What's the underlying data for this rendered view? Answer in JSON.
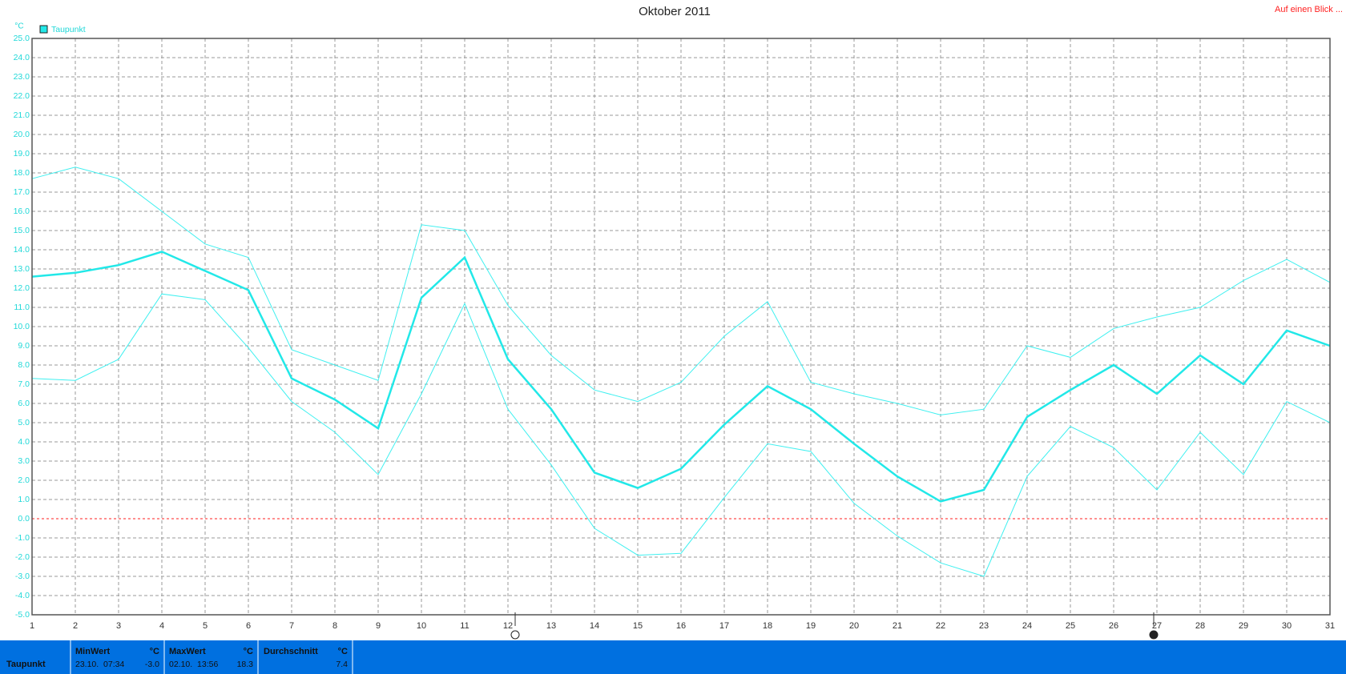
{
  "chart_data": {
    "type": "line",
    "title": "Oktober 2011",
    "corner_link": "Auf einen Blick ...",
    "y_unit": "°C",
    "x": [
      1,
      2,
      3,
      4,
      5,
      6,
      7,
      8,
      9,
      10,
      11,
      12,
      13,
      14,
      15,
      16,
      17,
      18,
      19,
      20,
      21,
      22,
      23,
      24,
      25,
      26,
      27,
      28,
      29,
      30,
      31
    ],
    "series": [
      {
        "color": "#3ff0f0",
        "line_width": 1,
        "values": [
          17.7,
          18.3,
          17.7,
          16.0,
          14.3,
          13.6,
          8.8,
          8.0,
          7.2,
          15.3,
          15.0,
          11.1,
          8.5,
          6.7,
          6.1,
          7.1,
          9.5,
          11.3,
          7.1,
          6.5,
          6.0,
          5.4,
          5.7,
          9.0,
          8.4,
          9.9,
          10.5,
          11.0,
          12.4,
          13.5,
          12.3
        ]
      },
      {
        "name": "Taupunkt",
        "color": "#22e8e8",
        "line_width": 2.5,
        "values": [
          12.6,
          12.8,
          13.2,
          13.9,
          12.9,
          11.9,
          7.3,
          6.2,
          4.7,
          11.5,
          13.6,
          8.3,
          5.7,
          2.4,
          1.6,
          2.6,
          4.9,
          6.9,
          5.7,
          3.9,
          2.2,
          0.9,
          1.5,
          5.3,
          6.7,
          8.0,
          6.5,
          8.5,
          7.0,
          9.8,
          9.0
        ]
      },
      {
        "color": "#3ff0f0",
        "line_width": 1,
        "values": [
          7.3,
          7.2,
          8.3,
          11.7,
          11.4,
          8.9,
          6.1,
          4.5,
          2.3,
          6.5,
          11.2,
          5.7,
          2.8,
          -0.5,
          -1.9,
          -1.8,
          1.1,
          3.9,
          3.5,
          0.8,
          -0.9,
          -2.3,
          -3.0,
          2.2,
          4.8,
          3.7,
          1.5,
          4.5,
          2.3,
          6.1,
          5.0
        ]
      }
    ],
    "xlim": [
      1,
      31
    ],
    "xticks": [
      1,
      2,
      3,
      4,
      5,
      6,
      7,
      8,
      9,
      10,
      11,
      12,
      13,
      14,
      15,
      16,
      17,
      18,
      19,
      20,
      21,
      22,
      23,
      24,
      25,
      26,
      27,
      28,
      29,
      30,
      31
    ],
    "ylim": [
      -5,
      25
    ],
    "yticks": [
      {
        "value": -5,
        "label": "-5.0"
      },
      {
        "value": -4,
        "label": "-4.0"
      },
      {
        "value": -3,
        "label": "-3.0"
      },
      {
        "value": -2,
        "label": "-2.0"
      },
      {
        "value": -1,
        "label": "-1.0"
      },
      {
        "value": 0,
        "label": "0.0"
      },
      {
        "value": 1,
        "label": "1.0"
      },
      {
        "value": 2,
        "label": "2.0"
      },
      {
        "value": 3,
        "label": "3.0"
      },
      {
        "value": 4,
        "label": "4.0"
      },
      {
        "value": 5,
        "label": "5.0"
      },
      {
        "value": 6,
        "label": "6.0"
      },
      {
        "value": 7,
        "label": "7.0"
      },
      {
        "value": 8,
        "label": "8.0"
      },
      {
        "value": 9,
        "label": "9.0"
      },
      {
        "value": 10,
        "label": "10.0"
      },
      {
        "value": 11,
        "label": "11.0"
      },
      {
        "value": 12,
        "label": "12.0"
      },
      {
        "value": 13,
        "label": "13.0"
      },
      {
        "value": 14,
        "label": "14.0"
      },
      {
        "value": 15,
        "label": "15.0"
      },
      {
        "value": 16,
        "label": "16.0"
      },
      {
        "value": 17,
        "label": "17.0"
      },
      {
        "value": 18,
        "label": "18.0"
      },
      {
        "value": 19,
        "label": "19.0"
      },
      {
        "value": 20,
        "label": "20.0"
      },
      {
        "value": 21,
        "label": "21.0"
      },
      {
        "value": 22,
        "label": "22.0"
      },
      {
        "value": 23,
        "label": "23.0"
      },
      {
        "value": 24,
        "label": "24.0"
      },
      {
        "value": 25,
        "label": "25.0"
      }
    ],
    "grid": true,
    "zero_line_color": "#ff2020",
    "legend": "top-left"
  },
  "footer": {
    "row_label": "Taupunkt",
    "cells": [
      {
        "title": "MinWert",
        "unit": "°C",
        "when": "23.10.  07:34",
        "value": "-3.0"
      },
      {
        "title": "MaxWert",
        "unit": "°C",
        "when": "02.10.  13:56",
        "value": "18.3"
      },
      {
        "title": "Durchschnitt",
        "unit": "°C",
        "when": "",
        "value": "7.4"
      }
    ]
  }
}
